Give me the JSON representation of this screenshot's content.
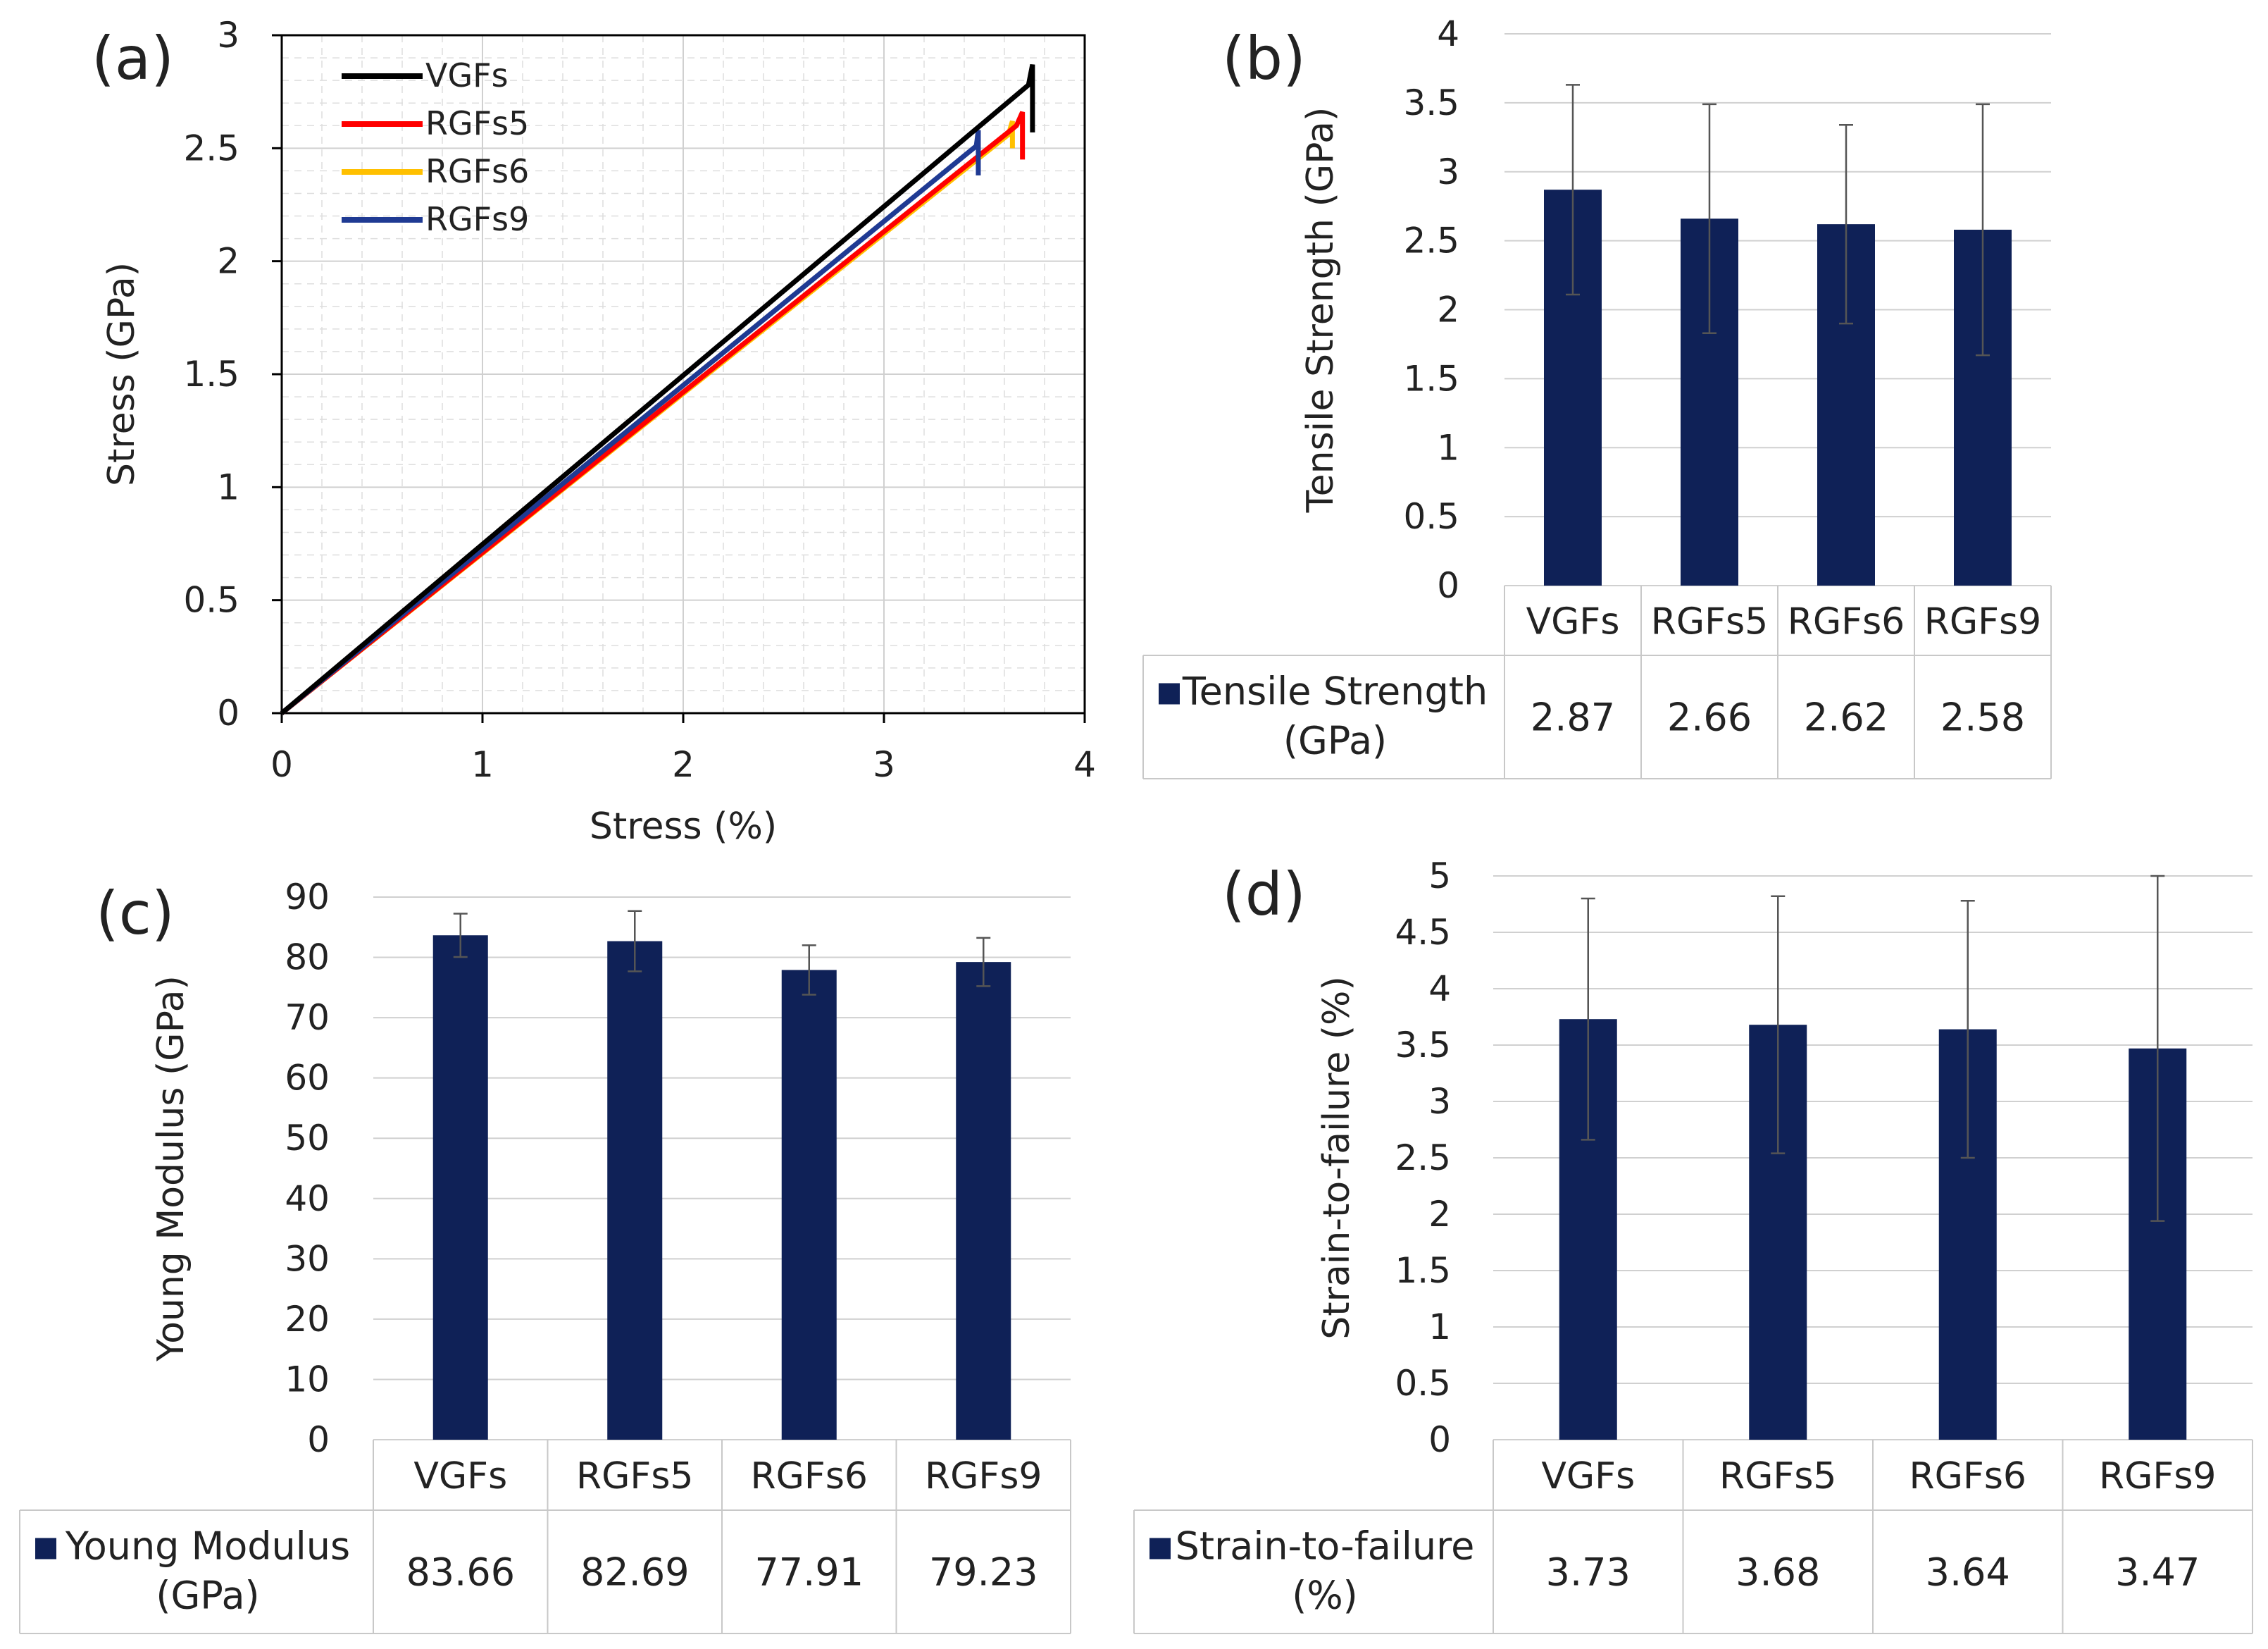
{
  "chart_data": [
    {
      "panel": "(a)",
      "type": "line",
      "xlabel": "Stress (%)",
      "ylabel": "Stress (GPa)",
      "xlim": [
        0,
        4
      ],
      "ylim": [
        0,
        3
      ],
      "xticks": [
        "0",
        "1",
        "2",
        "3",
        "4"
      ],
      "yticks": [
        "0",
        "0.5",
        "1",
        "1.5",
        "2",
        "2.5",
        "3"
      ],
      "grid": true,
      "legend_position": "top-left",
      "series": [
        {
          "name": "VGFs",
          "color": "#000000",
          "x": [
            0,
            3.72,
            3.74,
            3.74
          ],
          "y": [
            0,
            2.78,
            2.87,
            2.57
          ]
        },
        {
          "name": "RGFs5",
          "color": "#ff0000",
          "x": [
            0,
            3.66,
            3.69,
            3.69
          ],
          "y": [
            0,
            2.6,
            2.66,
            2.45
          ]
        },
        {
          "name": "RGFs6",
          "color": "#ffc000",
          "x": [
            0,
            3.62,
            3.64,
            3.64
          ],
          "y": [
            0,
            2.56,
            2.62,
            2.5
          ]
        },
        {
          "name": "RGFs9",
          "color": "#1f3a93",
          "x": [
            0,
            3.46,
            3.47,
            3.47
          ],
          "y": [
            0,
            2.51,
            2.58,
            2.38
          ]
        }
      ]
    },
    {
      "panel": "(b)",
      "type": "bar",
      "ylabel": "Tensile Strength (GPa)",
      "ylim": [
        0,
        4
      ],
      "yticks": [
        "0",
        "0.5",
        "1",
        "1.5",
        "2",
        "2.5",
        "3",
        "3.5",
        "4"
      ],
      "categories": [
        "VGFs",
        "RGFs5",
        "RGFs6",
        "RGFs9"
      ],
      "series": [
        {
          "name": "Tensile Strength (GPa)",
          "name_lines": [
            "Tensile Strength",
            "(GPa)"
          ],
          "values": [
            2.87,
            2.66,
            2.62,
            2.58
          ],
          "error": [
            0.76,
            0.83,
            0.72,
            0.91
          ],
          "labels": [
            "2.87",
            "2.66",
            "2.62",
            "2.58"
          ]
        }
      ],
      "color": "#0f2157"
    },
    {
      "panel": "(c)",
      "type": "bar",
      "ylabel": "Young Modulus (GPa)",
      "ylim": [
        0,
        90
      ],
      "yticks": [
        "0",
        "10",
        "20",
        "30",
        "40",
        "50",
        "60",
        "70",
        "80",
        "90"
      ],
      "categories": [
        "VGFs",
        "RGFs5",
        "RGFs6",
        "RGFs9"
      ],
      "series": [
        {
          "name": "Young Modulus (GPa)",
          "name_lines": [
            "Young Modulus",
            "(GPa)"
          ],
          "values": [
            83.66,
            82.69,
            77.91,
            79.23
          ],
          "error": [
            3.6,
            5.0,
            4.1,
            4.0
          ],
          "labels": [
            "83.66",
            "82.69",
            "77.91",
            "79.23"
          ]
        }
      ],
      "color": "#0f2157"
    },
    {
      "panel": "(d)",
      "type": "bar",
      "ylabel": "Strain-to-failure (%)",
      "ylim": [
        0,
        5
      ],
      "yticks": [
        "0",
        "0.5",
        "1",
        "1.5",
        "2",
        "2.5",
        "3",
        "3.5",
        "4",
        "4.5",
        "5"
      ],
      "categories": [
        "VGFs",
        "RGFs5",
        "RGFs6",
        "RGFs9"
      ],
      "series": [
        {
          "name": "Strain-to-failure (%)",
          "name_lines": [
            "Strain-to-failure",
            "(%)"
          ],
          "values": [
            3.73,
            3.68,
            3.64,
            3.47
          ],
          "error": [
            1.07,
            1.14,
            1.14,
            1.53
          ],
          "labels": [
            "3.73",
            "3.68",
            "3.64",
            "3.47"
          ]
        }
      ],
      "color": "#0f2157"
    }
  ]
}
